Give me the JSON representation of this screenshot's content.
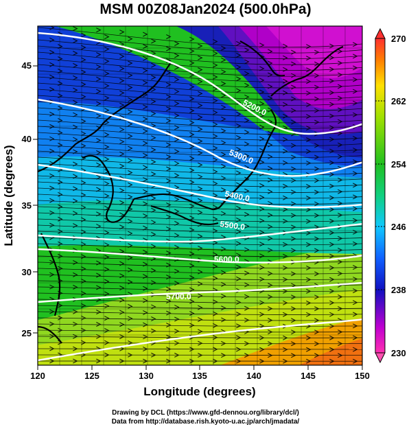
{
  "title": "MSM 00Z08Jan2024 (500.0hPa)",
  "x_axis": {
    "label": "Longitude (degrees)",
    "ticks": [
      "120",
      "125",
      "130",
      "135",
      "140",
      "145",
      "150"
    ]
  },
  "y_axis": {
    "label": "Latitude  (degrees)",
    "ticks": [
      "25",
      "30",
      "35",
      "40",
      "45"
    ]
  },
  "colorbar": {
    "ticks": [
      "230",
      "238",
      "246",
      "254",
      "262",
      "270"
    ],
    "min": 230,
    "max": 270
  },
  "contours": {
    "labels": [
      "5200.0",
      "5300.0",
      "5400.0",
      "5500.0",
      "5600.0",
      "5700.0"
    ]
  },
  "footer": {
    "line1": "Drawing by DCL (https://www.gfd-dennou.org/library/dcl/)",
    "line2": "Data from http://database.rish.kyoto-u.ac.jp/arch/jmadata/"
  },
  "colors": {
    "field_low": "#d000d0",
    "field_mid_low": "#1030d0",
    "field_mid": "#10c8c8",
    "field_mid_high": "#20c020",
    "field_high": "#f08000"
  }
}
